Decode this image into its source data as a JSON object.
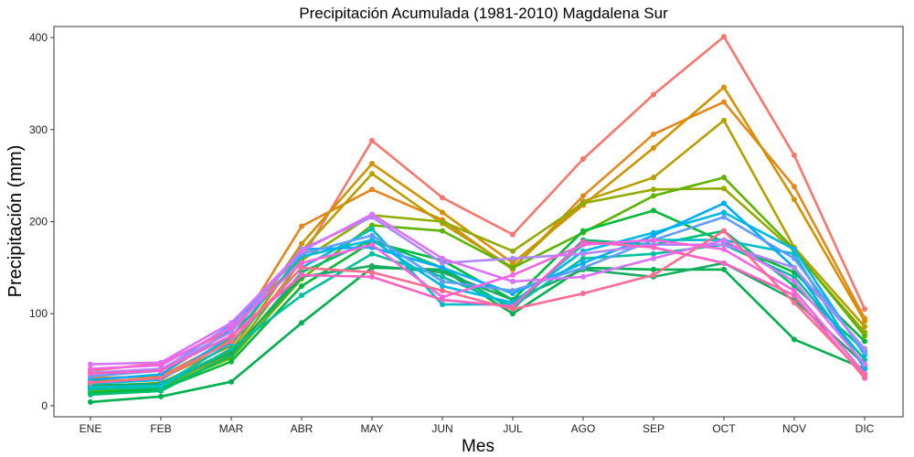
{
  "chart_data": {
    "type": "line",
    "title": "Precipitación Acumulada (1981-2010)  Magdalena Sur",
    "xlabel": "Mes",
    "ylabel": "Precipitación  (mm)",
    "categories": [
      "ENE",
      "FEB",
      "MAR",
      "ABR",
      "MAY",
      "JUN",
      "JUL",
      "AGO",
      "SEP",
      "OCT",
      "NOV",
      "DIC"
    ],
    "ylim": [
      -12,
      412
    ],
    "yticks": [
      0,
      100,
      200,
      300,
      400
    ],
    "grid": false,
    "legend": "none",
    "series": [
      {
        "color": "#F8766D",
        "values": [
          38,
          46,
          82,
          160,
          288,
          226,
          186,
          268,
          338,
          401,
          272,
          105
        ]
      },
      {
        "color": "#E7861B",
        "values": [
          30,
          32,
          72,
          195,
          235,
          202,
          148,
          228,
          295,
          330,
          238,
          95
        ]
      },
      {
        "color": "#D39200",
        "values": [
          26,
          30,
          65,
          176,
          263,
          210,
          155,
          218,
          280,
          346,
          224,
          92
        ]
      },
      {
        "color": "#B79F00",
        "values": [
          20,
          25,
          60,
          168,
          252,
          198,
          150,
          222,
          248,
          310,
          172,
          86
        ]
      },
      {
        "color": "#93AA00",
        "values": [
          18,
          22,
          56,
          158,
          207,
          200,
          168,
          220,
          235,
          236,
          168,
          80
        ]
      },
      {
        "color": "#5EB300",
        "values": [
          16,
          20,
          52,
          138,
          196,
          190,
          150,
          188,
          228,
          248,
          170,
          76
        ]
      },
      {
        "color": "#00BA38",
        "values": [
          14,
          18,
          48,
          130,
          178,
          158,
          115,
          190,
          212,
          178,
          145,
          70
        ]
      },
      {
        "color": "#00BF74",
        "values": [
          12,
          16,
          55,
          145,
          180,
          150,
          105,
          180,
          175,
          190,
          130,
          60
        ]
      },
      {
        "color": "#00B04F",
        "values": [
          4,
          10,
          26,
          90,
          150,
          148,
          100,
          150,
          148,
          148,
          72,
          40
        ]
      },
      {
        "color": "#1BAA63",
        "values": [
          22,
          24,
          58,
          140,
          152,
          145,
          115,
          148,
          140,
          155,
          115,
          45
        ]
      },
      {
        "color": "#00C19F",
        "values": [
          18,
          20,
          62,
          120,
          165,
          140,
          108,
          160,
          165,
          175,
          140,
          50
        ]
      },
      {
        "color": "#00BFC4",
        "values": [
          20,
          22,
          68,
          150,
          192,
          110,
          110,
          175,
          180,
          180,
          165,
          40
        ]
      },
      {
        "color": "#00B9E3",
        "values": [
          24,
          28,
          75,
          162,
          180,
          130,
          112,
          168,
          188,
          210,
          170,
          55
        ]
      },
      {
        "color": "#00ADFA",
        "values": [
          28,
          34,
          82,
          170,
          172,
          150,
          122,
          155,
          185,
          220,
          150,
          42
        ]
      },
      {
        "color": "#619CFF",
        "values": [
          32,
          38,
          88,
          165,
          185,
          135,
          125,
          150,
          180,
          205,
          160,
          58
        ]
      },
      {
        "color": "#AE87FF",
        "values": [
          36,
          40,
          80,
          170,
          205,
          155,
          160,
          165,
          175,
          175,
          150,
          62
        ]
      },
      {
        "color": "#DB72FB",
        "values": [
          45,
          47,
          90,
          168,
          208,
          160,
          135,
          140,
          160,
          180,
          135,
          45
        ]
      },
      {
        "color": "#F564E3",
        "values": [
          40,
          44,
          85,
          155,
          175,
          118,
          142,
          175,
          180,
          170,
          125,
          35
        ]
      },
      {
        "color": "#FF61C3",
        "values": [
          35,
          38,
          76,
          142,
          140,
          115,
          108,
          178,
          172,
          155,
          120,
          30
        ]
      },
      {
        "color": "#FF6C91",
        "values": [
          25,
          30,
          70,
          150,
          145,
          125,
          105,
          122,
          142,
          190,
          112,
          33
        ]
      }
    ]
  }
}
